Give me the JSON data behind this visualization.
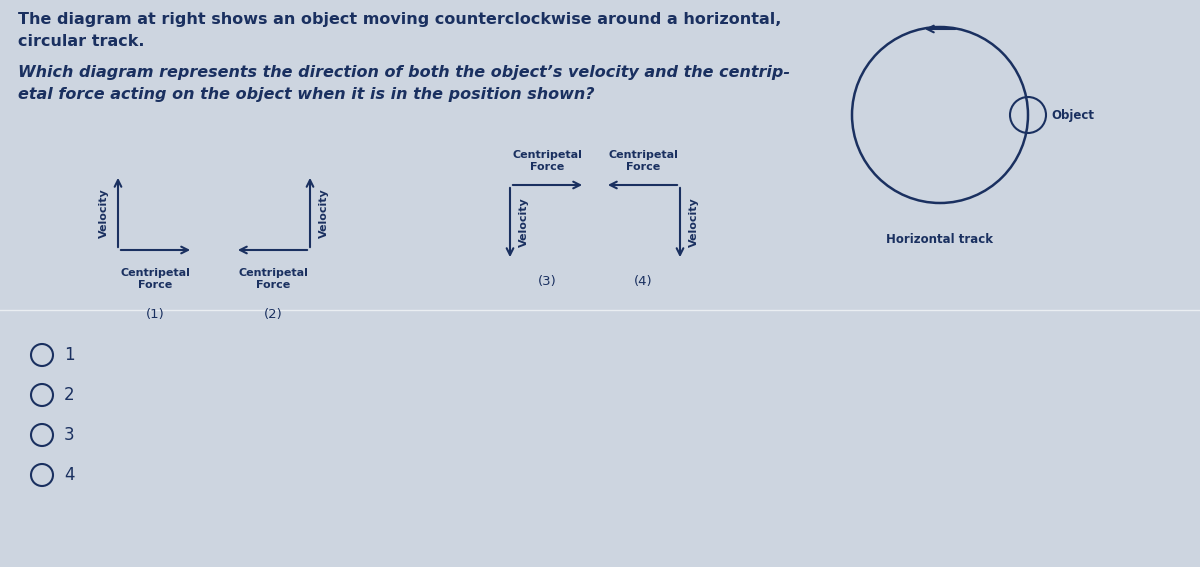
{
  "bg_color": "#cdd5e0",
  "text_color": "#1a3060",
  "title_line1": "The diagram at right shows an object moving counterclockwise around a horizontal,",
  "title_line2": "circular track.",
  "question_line1": "Which diagram represents the direction of both the object’s velocity and the centrip-",
  "question_line2": "etal force acting on the object when it is in the position shown?",
  "radio_options": [
    "1",
    "2",
    "3",
    "4"
  ],
  "font_size_title": 11.5,
  "font_size_question": 11.5,
  "font_size_labels": 8.0,
  "font_size_numbers": 9.5,
  "font_size_radio": 12,
  "arrow_color": "#1a3060",
  "circle_color": "#1a3060",
  "line_color": "#c8c8c8"
}
